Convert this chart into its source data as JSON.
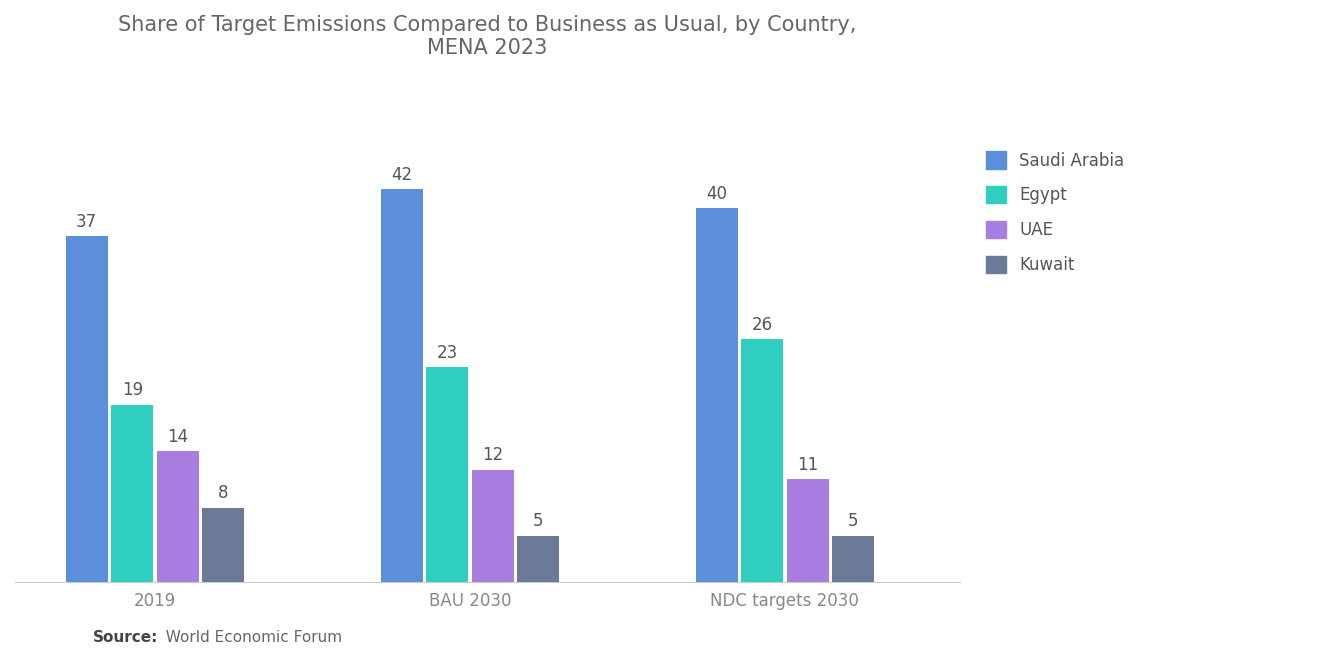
{
  "title": "Share of Target Emissions Compared to Business as Usual, by Country,\nMENA 2023",
  "title_fontsize": 15,
  "title_color": "#666666",
  "groups": [
    "2019",
    "BAU 2030",
    "NDC targets 2030"
  ],
  "countries": [
    "Saudi Arabia",
    "Egypt",
    "UAE",
    "Kuwait"
  ],
  "values": [
    [
      37,
      19,
      14,
      8
    ],
    [
      42,
      23,
      12,
      5
    ],
    [
      40,
      26,
      11,
      5
    ]
  ],
  "colors": [
    "#5b8edb",
    "#2ecfc0",
    "#a87ee0",
    "#6b7a96"
  ],
  "bar_width": 0.12,
  "group_positions": [
    0.25,
    1.15,
    2.05
  ],
  "ylim": [
    0,
    52
  ],
  "source_bold": "Source:",
  "source_rest": "  World Economic Forum",
  "source_fontsize": 11,
  "label_fontsize": 12,
  "legend_fontsize": 12,
  "tick_fontsize": 12,
  "background_color": "#ffffff",
  "label_color": "#555555",
  "tick_color": "#888888"
}
